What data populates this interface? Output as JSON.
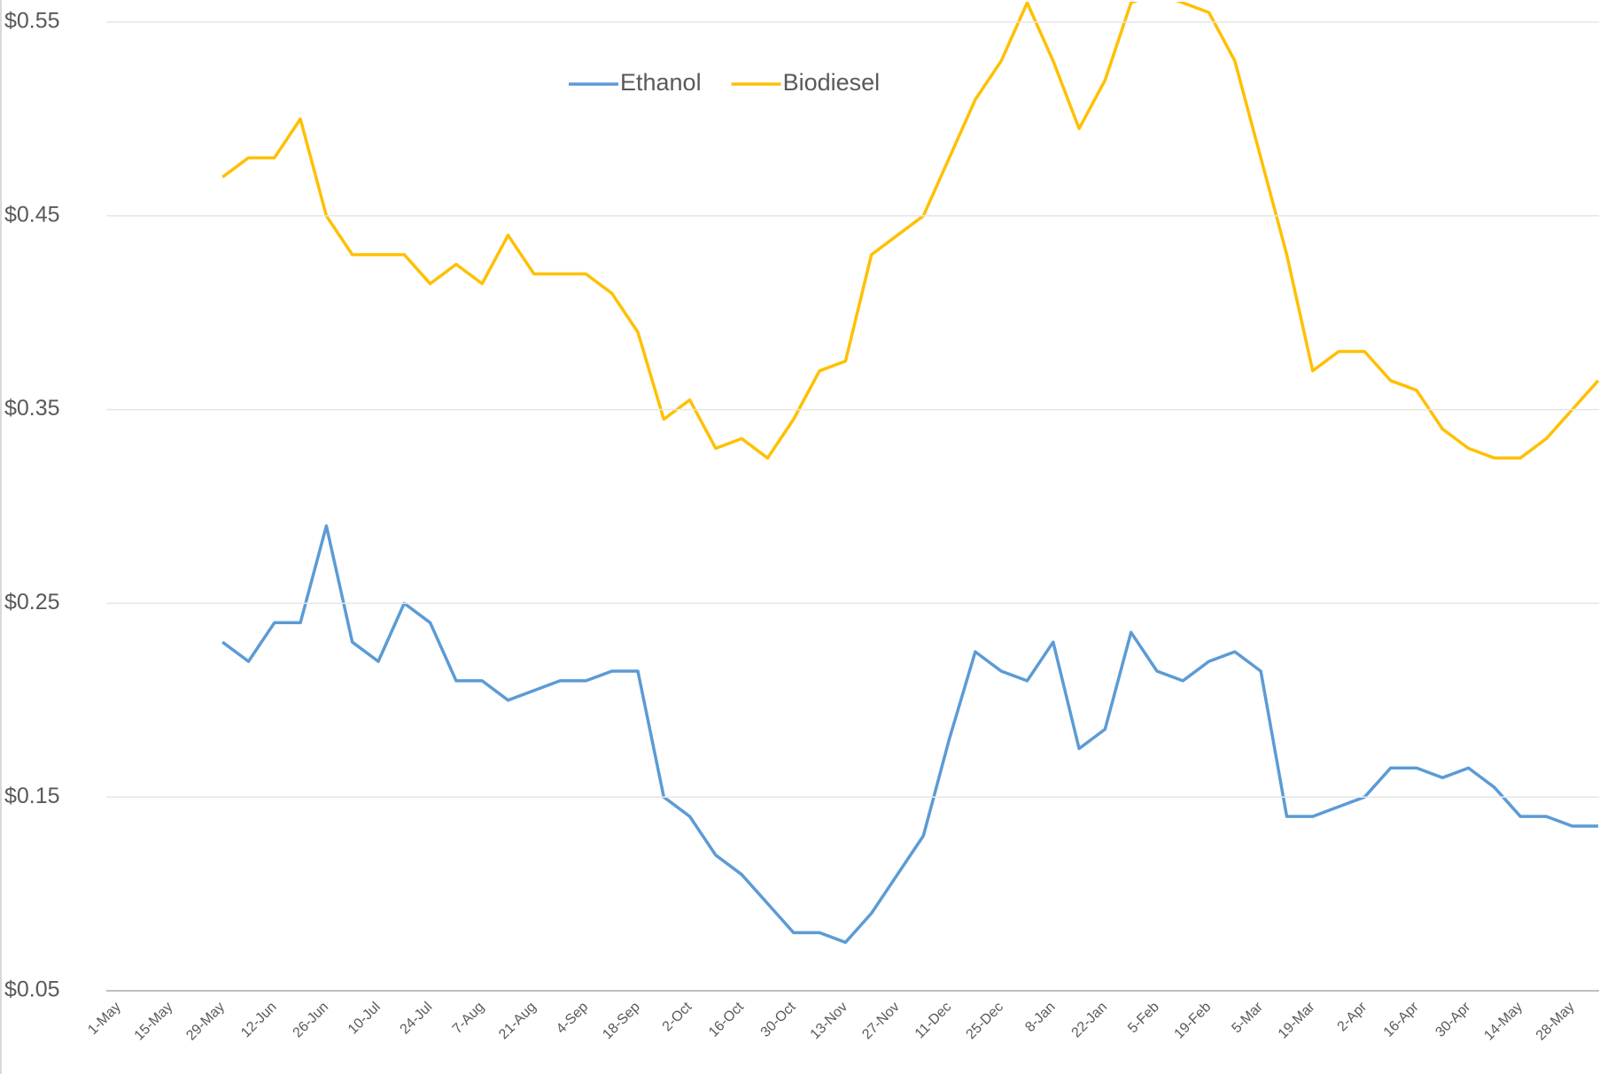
{
  "chart_data": {
    "type": "line",
    "categories": [
      "1-May",
      null,
      "15-May",
      null,
      "29-May",
      null,
      "12-Jun",
      null,
      "26-Jun",
      null,
      "10-Jul",
      null,
      "24-Jul",
      null,
      "7-Aug",
      null,
      "21-Aug",
      null,
      "4-Sep",
      null,
      "18-Sep",
      null,
      "2-Oct",
      null,
      "16-Oct",
      null,
      "30-Oct",
      null,
      "13-Nov",
      null,
      "27-Nov",
      null,
      "11-Dec",
      null,
      "25-Dec",
      null,
      "8-Jan",
      null,
      "22-Jan",
      null,
      "5-Feb",
      null,
      "19-Feb",
      null,
      "5-Mar",
      null,
      "19-Mar",
      null,
      "2-Apr",
      null,
      "16-Apr",
      null,
      "30-Apr",
      null,
      "14-May",
      null,
      "28-May",
      null
    ],
    "series": [
      {
        "name": "Ethanol",
        "color": "#5b9bd5",
        "values": [
          null,
          null,
          null,
          null,
          0.23,
          0.22,
          0.24,
          0.24,
          0.29,
          0.23,
          0.22,
          0.25,
          0.24,
          0.21,
          0.21,
          0.2,
          0.205,
          0.21,
          0.21,
          0.215,
          0.215,
          0.15,
          0.14,
          0.12,
          0.11,
          0.095,
          0.08,
          0.08,
          0.075,
          0.09,
          0.11,
          0.13,
          0.18,
          0.225,
          0.215,
          0.21,
          0.23,
          0.175,
          0.185,
          0.235,
          0.215,
          0.21,
          0.22,
          0.225,
          0.215,
          0.14,
          0.14,
          0.145,
          0.15,
          0.165,
          0.165,
          0.16,
          0.165,
          0.155,
          0.14,
          0.14,
          0.135,
          0.135
        ]
      },
      {
        "name": "Biodiesel",
        "color": "#ffc000",
        "values": [
          null,
          null,
          null,
          null,
          0.47,
          0.48,
          0.48,
          0.5,
          0.45,
          0.43,
          0.43,
          0.43,
          0.415,
          0.425,
          0.415,
          0.44,
          0.42,
          0.42,
          0.42,
          0.41,
          0.39,
          0.345,
          0.355,
          0.33,
          0.335,
          0.325,
          0.345,
          0.37,
          0.375,
          0.43,
          0.44,
          0.45,
          0.48,
          0.51,
          0.53,
          0.56,
          0.53,
          0.495,
          0.52,
          0.56,
          0.565,
          0.56,
          0.555,
          0.53,
          0.48,
          0.43,
          0.37,
          0.38,
          0.38,
          0.365,
          0.36,
          0.34,
          0.33,
          0.325,
          0.325,
          0.335,
          0.35,
          0.365
        ]
      }
    ],
    "ylim": [
      0.05,
      0.55
    ],
    "yticks": [
      {
        "value": 0.05,
        "label": "$0.05"
      },
      {
        "value": 0.15,
        "label": "$0.15"
      },
      {
        "value": 0.25,
        "label": "$0.25"
      },
      {
        "value": 0.35,
        "label": "$0.35"
      },
      {
        "value": 0.45,
        "label": "$0.45"
      },
      {
        "value": 0.55,
        "label": "$0.55"
      }
    ],
    "grid": true,
    "legend": "top"
  }
}
